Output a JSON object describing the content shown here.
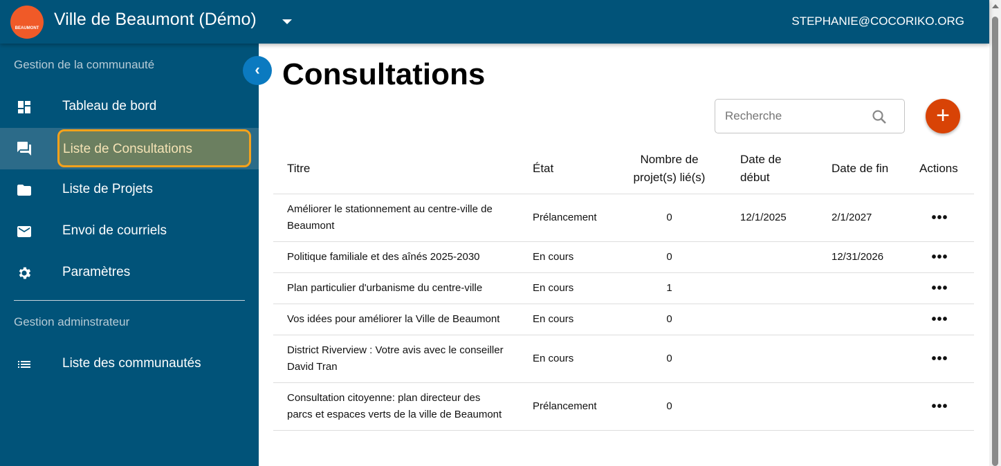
{
  "header": {
    "title": "Ville de Beaumont (Démo)",
    "logo_text": "BEAUMONT",
    "user": "STEPHANIE@COCORIKO.ORG"
  },
  "sidebar": {
    "section1": "Gestion de la communauté",
    "section2": "Gestion adminstrateur",
    "items": [
      {
        "label": "Tableau de bord",
        "icon": "dashboard-icon"
      },
      {
        "label": "Liste de Consultations",
        "icon": "forum-icon"
      },
      {
        "label": "Liste de Projets",
        "icon": "folder-icon"
      },
      {
        "label": "Envoi de courriels",
        "icon": "mail-icon"
      },
      {
        "label": "Paramètres",
        "icon": "gear-icon"
      },
      {
        "label": "Liste des communautés",
        "icon": "list-icon"
      }
    ]
  },
  "main": {
    "title": "Consultations",
    "search_placeholder": "Recherche",
    "add_label": "+",
    "columns": [
      "Titre",
      "État",
      "Nombre de projet(s) lié(s)",
      "Date de début",
      "Date de fin",
      "Actions"
    ],
    "rows": [
      [
        "Améliorer le stationnement au centre-ville de Beaumont",
        "Prélancement",
        "0",
        "12/1/2025",
        "2/1/2027"
      ],
      [
        "Politique familiale et des aînés 2025-2030",
        "En cours",
        "0",
        "",
        "12/31/2026"
      ],
      [
        "Plan particulier d'urbanisme du centre-ville",
        "En cours",
        "1",
        "",
        ""
      ],
      [
        "Vos idées pour améliorer la Ville de Beaumont",
        "En cours",
        "0",
        "",
        ""
      ],
      [
        "District Riverview : Votre avis avec le conseiller David Tran",
        "En cours",
        "0",
        "",
        ""
      ],
      [
        "Consultation citoyenne: plan directeur des parcs et espaces verts de la ville de Beaumont",
        "Prélancement",
        "0",
        "",
        ""
      ]
    ],
    "actions_label": "•••"
  },
  "colors": {
    "primary": "#015379",
    "accent": "#d84306",
    "highlight": "#f7a21b"
  }
}
